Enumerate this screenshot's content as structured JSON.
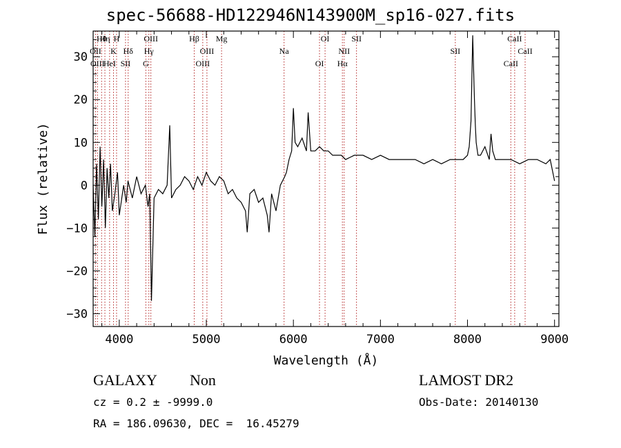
{
  "title": "spec-56688-HD122946N143900M_sp16-027.fits",
  "info": {
    "class": "GALAXY",
    "subclass": "Non",
    "cz": "cz = 0.2 ± -9999.0",
    "radec": "RA = 186.09630, DEC =  16.45279",
    "survey": "LAMOST DR2",
    "obsdate": "Obs-Date: 20140130"
  },
  "chart_data": {
    "type": "line",
    "title": "spec-56688-HD122946N143900M_sp16-027.fits",
    "xlabel": "Wavelength (Å)",
    "ylabel": "Flux (relative)",
    "xlim": [
      3700,
      9050
    ],
    "ylim": [
      -33,
      36
    ],
    "xticks": [
      4000,
      5000,
      6000,
      7000,
      8000,
      9000
    ],
    "yticks": [
      -30,
      -20,
      -10,
      0,
      10,
      20,
      30
    ],
    "grid": false,
    "legend": "none",
    "line_color": "#000000",
    "marker_color": "#b22222",
    "series": [
      {
        "x": [
          3700,
          3720,
          3740,
          3760,
          3780,
          3800,
          3820,
          3840,
          3860,
          3880,
          3900,
          3920,
          3950,
          3980,
          4000,
          4050,
          4080,
          4100,
          4150,
          4200,
          4250,
          4300,
          4330,
          4350,
          4370,
          4400,
          4450,
          4500,
          4550,
          4580,
          4600,
          4650,
          4700,
          4750,
          4800,
          4850,
          4900,
          4950,
          5000,
          5050,
          5100,
          5150,
          5200,
          5250,
          5300,
          5350,
          5400,
          5450,
          5470,
          5500,
          5550,
          5600,
          5650,
          5700,
          5720,
          5750,
          5800,
          5850,
          5900,
          5920,
          5950,
          5980,
          6000,
          6020,
          6050,
          6100,
          6150,
          6170,
          6200,
          6250,
          6300,
          6350,
          6400,
          6450,
          6500,
          6550,
          6600,
          6700,
          6800,
          6900,
          7000,
          7100,
          7200,
          7300,
          7400,
          7500,
          7600,
          7700,
          7800,
          7850,
          7900,
          7950,
          8000,
          8020,
          8040,
          8060,
          8070,
          8080,
          8090,
          8100,
          8120,
          8150,
          8200,
          8250,
          8270,
          8290,
          8320,
          8400,
          8500,
          8600,
          8700,
          8800,
          8900,
          8950,
          9000
        ],
        "y": [
          0,
          -12,
          5,
          -8,
          9,
          -5,
          6,
          -10,
          4,
          -3,
          5,
          -6,
          -2,
          3,
          -7,
          0,
          -4,
          1,
          -3,
          2,
          -2,
          0,
          -5,
          -2,
          -27,
          -3,
          -1,
          -2,
          0,
          14,
          -3,
          -1,
          0,
          2,
          1,
          -1,
          2,
          0,
          3,
          1,
          0,
          2,
          1,
          -2,
          -1,
          -3,
          -4,
          -6,
          -11,
          -2,
          -1,
          -4,
          -3,
          -7,
          -11,
          -2,
          -6,
          0,
          2,
          3,
          6,
          8,
          18,
          10,
          9,
          11,
          8,
          17,
          8,
          8,
          9,
          8,
          8,
          7,
          7,
          7,
          6,
          7,
          7,
          6,
          7,
          6,
          6,
          6,
          6,
          5,
          6,
          5,
          6,
          6,
          6,
          6,
          7,
          9,
          15,
          35,
          27,
          20,
          14,
          10,
          7,
          7,
          9,
          6,
          12,
          8,
          6,
          6,
          6,
          5,
          6,
          6,
          5,
          6,
          1
        ]
      }
    ],
    "lines": [
      {
        "name": "Hθ",
        "x": 3797
      },
      {
        "name": "OII",
        "x": 3727
      },
      {
        "name": "OIII",
        "x": 3750
      },
      {
        "name": "Hη",
        "x": 3835
      },
      {
        "name": "K",
        "x": 3934
      },
      {
        "name": "HeI",
        "x": 3889
      },
      {
        "name": "H",
        "x": 3969
      },
      {
        "name": "Hδ",
        "x": 4102
      },
      {
        "name": "SII",
        "x": 4072
      },
      {
        "name": "OIII",
        "x": 4363
      },
      {
        "name": "Hγ",
        "x": 4340
      },
      {
        "name": "G",
        "x": 4305
      },
      {
        "name": "Hβ",
        "x": 4861
      },
      {
        "name": "OIII",
        "x": 5007
      },
      {
        "name": "OIII",
        "x": 4959
      },
      {
        "name": "Mg",
        "x": 5175
      },
      {
        "name": "Na",
        "x": 5893
      },
      {
        "name": "OI",
        "x": 6300
      },
      {
        "name": "OI",
        "x": 6364
      },
      {
        "name": "NII",
        "x": 6583
      },
      {
        "name": "Hα",
        "x": 6563
      },
      {
        "name": "SII",
        "x": 6725
      },
      {
        "name": "SII",
        "x": 7860
      },
      {
        "name": "CaII",
        "x": 8498
      },
      {
        "name": "CaII",
        "x": 8542
      },
      {
        "name": "CaII",
        "x": 8662
      }
    ]
  }
}
